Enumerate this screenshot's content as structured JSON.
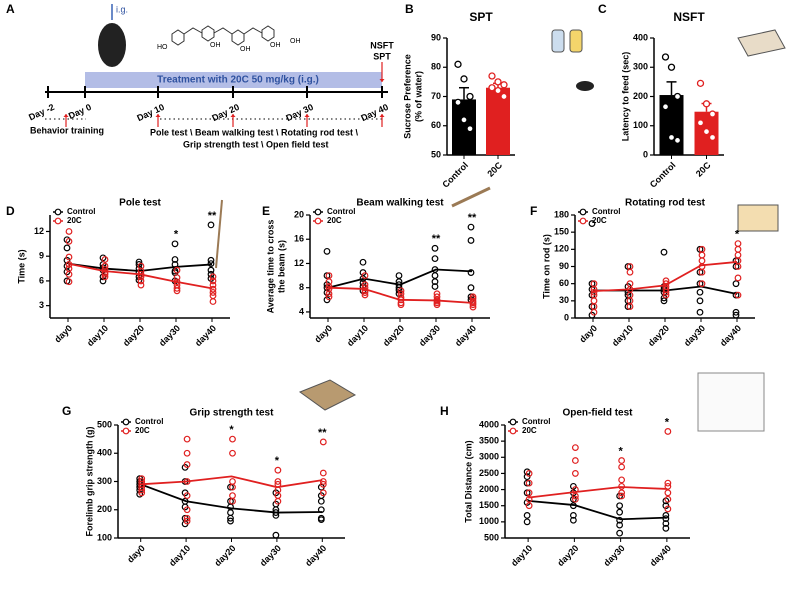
{
  "timeline": {
    "panel": "A",
    "route": "i.g.",
    "structure_labels": [
      "HO",
      "OH",
      "OH",
      "OH",
      "OH"
    ],
    "treatment": "Treatment with 20C 50 mg/kg (i.g.)",
    "days": [
      "Day -2",
      "Day 0",
      "Day 10",
      "Day 20",
      "Day 30",
      "Day 40"
    ],
    "end_tests": [
      "NSFT",
      "SPT"
    ],
    "training": "Behavior training",
    "tests": [
      "Pole test \\ Beam walking test \\ Rotating rod test \\",
      "Grip strength test \\ Open field test"
    ]
  },
  "chart_data": [
    {
      "type": "bar",
      "panel": "B",
      "title": "SPT",
      "ylabel": [
        "Sucrose Preference",
        "(% of water)"
      ],
      "categories": [
        "Control",
        "20C"
      ],
      "values": [
        69,
        73
      ],
      "errors": [
        4,
        1.5
      ],
      "colors": [
        "#000000",
        "#e02020"
      ],
      "points": [
        [
          81,
          76,
          70,
          68,
          62,
          59
        ],
        [
          77,
          75,
          74,
          73,
          72,
          70
        ]
      ],
      "ylim": [
        50,
        90
      ],
      "yticks": [
        50,
        60,
        70,
        80,
        90
      ]
    },
    {
      "type": "bar",
      "panel": "C",
      "title": "NSFT",
      "ylabel": [
        "Latency to feed (sec)"
      ],
      "categories": [
        "Control",
        "20C"
      ],
      "values": [
        205,
        148
      ],
      "errors": [
        45,
        28
      ],
      "colors": [
        "#000000",
        "#e02020"
      ],
      "points": [
        [
          335,
          300,
          200,
          165,
          60,
          50
        ],
        [
          245,
          175,
          140,
          110,
          80,
          60
        ]
      ],
      "ylim": [
        0,
        400
      ],
      "yticks": [
        0,
        100,
        200,
        300,
        400
      ]
    },
    {
      "type": "line",
      "panel": "D",
      "title": "Pole test",
      "ylabel": [
        "Time (s)"
      ],
      "legend": "upper left",
      "categories": [
        "day0",
        "day10",
        "day20",
        "day30",
        "day40"
      ],
      "series": [
        {
          "name": "Control",
          "color": "#000000",
          "values": [
            8.1,
            7.5,
            7.2,
            7.7,
            8.0
          ],
          "points": [
            [
              11,
              10,
              8.5,
              7.8,
              7.1,
              6
            ],
            [
              8.8,
              8,
              7.6,
              7.3,
              6.5,
              6
            ],
            [
              8.3,
              8,
              7.5,
              7,
              6.5,
              6.1
            ],
            [
              10.5,
              8.6,
              8,
              7.2,
              7,
              6
            ],
            [
              12.8,
              8.5,
              8.1,
              7.3,
              6.8,
              6.3
            ]
          ]
        },
        {
          "name": "20C",
          "color": "#e02020",
          "values": [
            8.1,
            7.2,
            6.8,
            5.9,
            5.1
          ],
          "points": [
            [
              12,
              10.8,
              8.9,
              8,
              7.5,
              6.8,
              5.9
            ],
            [
              8.6,
              7.8,
              7.4,
              7,
              6.8,
              6.5
            ],
            [
              7.8,
              7.2,
              6.8,
              6.5,
              6,
              5.5
            ],
            [
              7.3,
              6.4,
              5.9,
              5.5,
              5.1,
              4.8
            ],
            [
              6.5,
              6,
              5.5,
              5,
              4.6,
              4.2,
              3.5
            ]
          ]
        }
      ],
      "significance": [
        null,
        null,
        null,
        "*",
        "**"
      ],
      "ylim": [
        1.5,
        14
      ],
      "yticks": [
        3,
        6,
        9,
        12
      ]
    },
    {
      "type": "line",
      "panel": "E",
      "title": "Beam walking test",
      "ylabel": [
        "Average time to cross",
        "the beam (s)"
      ],
      "legend": "upper left",
      "categories": [
        "day0",
        "day10",
        "day20",
        "day30",
        "day40"
      ],
      "series": [
        {
          "name": "Control",
          "color": "#000000",
          "values": [
            8,
            9.5,
            8.5,
            11,
            10.7
          ],
          "points": [
            [
              14,
              10,
              8.5,
              8,
              7.2,
              6
            ],
            [
              12.2,
              10.5,
              9.5,
              8.8,
              8.2,
              7.5
            ],
            [
              10,
              9,
              8.5,
              8,
              7.6,
              7
            ],
            [
              14.5,
              12.8,
              11,
              10,
              9,
              8.2
            ],
            [
              18,
              15.8,
              10.5,
              8,
              6.5,
              6
            ]
          ]
        },
        {
          "name": "20C",
          "color": "#e02020",
          "values": [
            8,
            7.8,
            6,
            5.9,
            5.5
          ],
          "points": [
            [
              10,
              9,
              8.2,
              7.8,
              7,
              6.5
            ],
            [
              10,
              8.5,
              8,
              7.5,
              7.2,
              6.8
            ],
            [
              7.5,
              7,
              6.4,
              6,
              5.5,
              5.2
            ],
            [
              7,
              6.5,
              6,
              5.8,
              5.5,
              5.2
            ],
            [
              6.5,
              6.2,
              5.8,
              5.5,
              5.2,
              4.8
            ]
          ]
        }
      ],
      "significance": [
        null,
        null,
        null,
        "**",
        "**"
      ],
      "ylim": [
        3,
        20
      ],
      "yticks": [
        4,
        8,
        12,
        16,
        20
      ]
    },
    {
      "type": "line",
      "panel": "F",
      "title": "Rotating rod test",
      "ylabel": [
        "Time on rod (s)"
      ],
      "legend": "upper left",
      "categories": [
        "day0",
        "day10",
        "day20",
        "day30",
        "day40"
      ],
      "series": [
        {
          "name": "Control",
          "color": "#000000",
          "values": [
            48,
            48,
            48,
            55,
            42
          ],
          "points": [
            [
              165,
              60,
              50,
              40,
              20,
              5
            ],
            [
              90,
              55,
              45,
              40,
              30,
              20
            ],
            [
              115,
              55,
              50,
              45,
              35,
              30
            ],
            [
              120,
              80,
              60,
              45,
              30,
              10
            ],
            [
              100,
              90,
              60,
              40,
              10,
              5
            ]
          ]
        },
        {
          "name": "20C",
          "color": "#e02020",
          "values": [
            47,
            50,
            57,
            92,
            98
          ],
          "points": [
            [
              60,
              50,
              45,
              40,
              30,
              20,
              10
            ],
            [
              90,
              80,
              60,
              50,
              40,
              30,
              20
            ],
            [
              65,
              60,
              55,
              50,
              45,
              40
            ],
            [
              120,
              110,
              100,
              90,
              80,
              60
            ],
            [
              130,
              120,
              110,
              100,
              90,
              70,
              40
            ]
          ]
        }
      ],
      "significance": [
        null,
        null,
        null,
        null,
        "*"
      ],
      "ylim": [
        0,
        180
      ],
      "yticks": [
        0,
        30,
        60,
        90,
        120,
        150,
        180
      ]
    },
    {
      "type": "line",
      "panel": "G",
      "title": "Grip strength test",
      "ylabel": [
        "Forelimb grip strength (g)"
      ],
      "legend": "upper left",
      "categories": [
        "day0",
        "day10",
        "day20",
        "day30",
        "day40"
      ],
      "series": [
        {
          "name": "Control",
          "color": "#000000",
          "values": [
            290,
            230,
            205,
            190,
            192
          ],
          "points": [
            [
              310,
              300,
              290,
              280,
              270,
              255
            ],
            [
              350,
              300,
              260,
              230,
              210,
              170,
              150
            ],
            [
              280,
              230,
              210,
              190,
              170,
              160
            ],
            [
              260,
              220,
              200,
              190,
              180,
              110
            ],
            [
              280,
              250,
              230,
              200,
              170,
              165
            ]
          ]
        },
        {
          "name": "20C",
          "color": "#e02020",
          "values": [
            290,
            300,
            318,
            280,
            305
          ],
          "points": [
            [
              310,
              300,
              290,
              280,
              270,
              260
            ],
            [
              450,
              400,
              360,
              300,
              250,
              200,
              170,
              160
            ],
            [
              450,
              400,
              300,
              280,
              250,
              230
            ],
            [
              340,
              300,
              290,
              270,
              250,
              230
            ],
            [
              440,
              330,
              300,
              290,
              260
            ]
          ]
        }
      ],
      "significance": [
        null,
        null,
        "*",
        "*",
        "**"
      ],
      "ylim": [
        100,
        500
      ],
      "yticks": [
        100,
        200,
        300,
        400,
        500
      ]
    },
    {
      "type": "line",
      "panel": "H",
      "title": "Open-field test",
      "ylabel": [
        "Total Distance (cm)"
      ],
      "legend": "upper left",
      "categories": [
        "day10",
        "day20",
        "day30",
        "day40"
      ],
      "series": [
        {
          "name": "Control",
          "color": "#000000",
          "values": [
            1650,
            1520,
            1080,
            1130
          ],
          "points": [
            [
              2550,
              2400,
              2200,
              1900,
              1600,
              1200,
              1000
            ],
            [
              2100,
              1900,
              1700,
              1500,
              1200,
              1050
            ],
            [
              1800,
              1500,
              1300,
              1050,
              900,
              650
            ],
            [
              1650,
              1500,
              1200,
              1100,
              950,
              800
            ]
          ]
        },
        {
          "name": "20C",
          "color": "#e02020",
          "values": [
            1750,
            1920,
            2080,
            2020
          ],
          "points": [
            [
              2500,
              2200,
              1900,
              1700,
              1500
            ],
            [
              3300,
              2900,
              2500,
              2000,
              1800,
              1700
            ],
            [
              2900,
              2700,
              2300,
              2100,
              1900,
              1800
            ],
            [
              3800,
              2200,
              2100,
              1900,
              1700,
              1400
            ]
          ]
        }
      ],
      "significance": [
        null,
        null,
        "*",
        "*"
      ],
      "ylim": [
        500,
        4000
      ],
      "yticks": [
        500,
        1000,
        1500,
        2000,
        2500,
        3000,
        3500,
        4000
      ]
    }
  ]
}
